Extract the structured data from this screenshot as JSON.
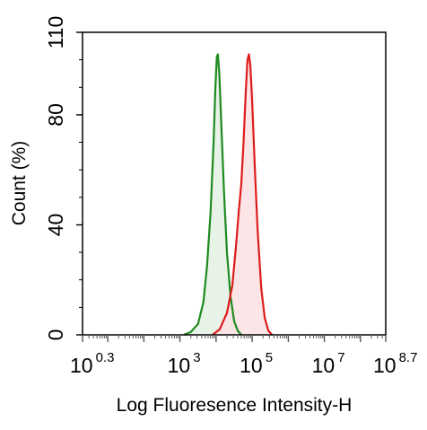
{
  "chart_data": {
    "type": "area",
    "xlabel": "Log Fluoresence Intensity-H",
    "ylabel": "Count  (%)",
    "xscale": "log10",
    "xlim_exponent": [
      0.3,
      8.7
    ],
    "ylim": [
      0,
      110
    ],
    "grid": false,
    "legend": "none",
    "x_ticks": [
      {
        "base": "10",
        "exp": "0.3",
        "value": 0.3
      },
      {
        "base": "10",
        "exp": "3",
        "value": 3
      },
      {
        "base": "10",
        "exp": "5",
        "value": 5
      },
      {
        "base": "10",
        "exp": "7",
        "value": 7
      },
      {
        "base": "10",
        "exp": "8.7",
        "value": 8.7
      }
    ],
    "y_ticks": [
      0,
      40,
      80,
      110
    ],
    "series": [
      {
        "color": "#1f8a1f",
        "fill": "#e4f1e4",
        "points": [
          [
            3.1,
            0
          ],
          [
            3.3,
            1
          ],
          [
            3.5,
            4
          ],
          [
            3.65,
            12
          ],
          [
            3.75,
            25
          ],
          [
            3.85,
            45
          ],
          [
            3.93,
            70
          ],
          [
            3.98,
            90
          ],
          [
            4.02,
            101
          ],
          [
            4.05,
            102
          ],
          [
            4.09,
            95
          ],
          [
            4.15,
            75
          ],
          [
            4.22,
            52
          ],
          [
            4.3,
            30
          ],
          [
            4.4,
            14
          ],
          [
            4.5,
            5
          ],
          [
            4.6,
            1.5
          ],
          [
            4.7,
            0
          ]
        ]
      },
      {
        "color": "#dd1c1c",
        "fill": "#fbe1e3",
        "points": [
          [
            3.9,
            0
          ],
          [
            4.1,
            2
          ],
          [
            4.3,
            8
          ],
          [
            4.45,
            18
          ],
          [
            4.55,
            32
          ],
          [
            4.63,
            45
          ],
          [
            4.7,
            55
          ],
          [
            4.76,
            70
          ],
          [
            4.82,
            88
          ],
          [
            4.87,
            100
          ],
          [
            4.91,
            102
          ],
          [
            4.95,
            98
          ],
          [
            5.0,
            85
          ],
          [
            5.07,
            62
          ],
          [
            5.15,
            38
          ],
          [
            5.25,
            17
          ],
          [
            5.35,
            6
          ],
          [
            5.45,
            1.5
          ],
          [
            5.55,
            0
          ]
        ]
      }
    ]
  }
}
